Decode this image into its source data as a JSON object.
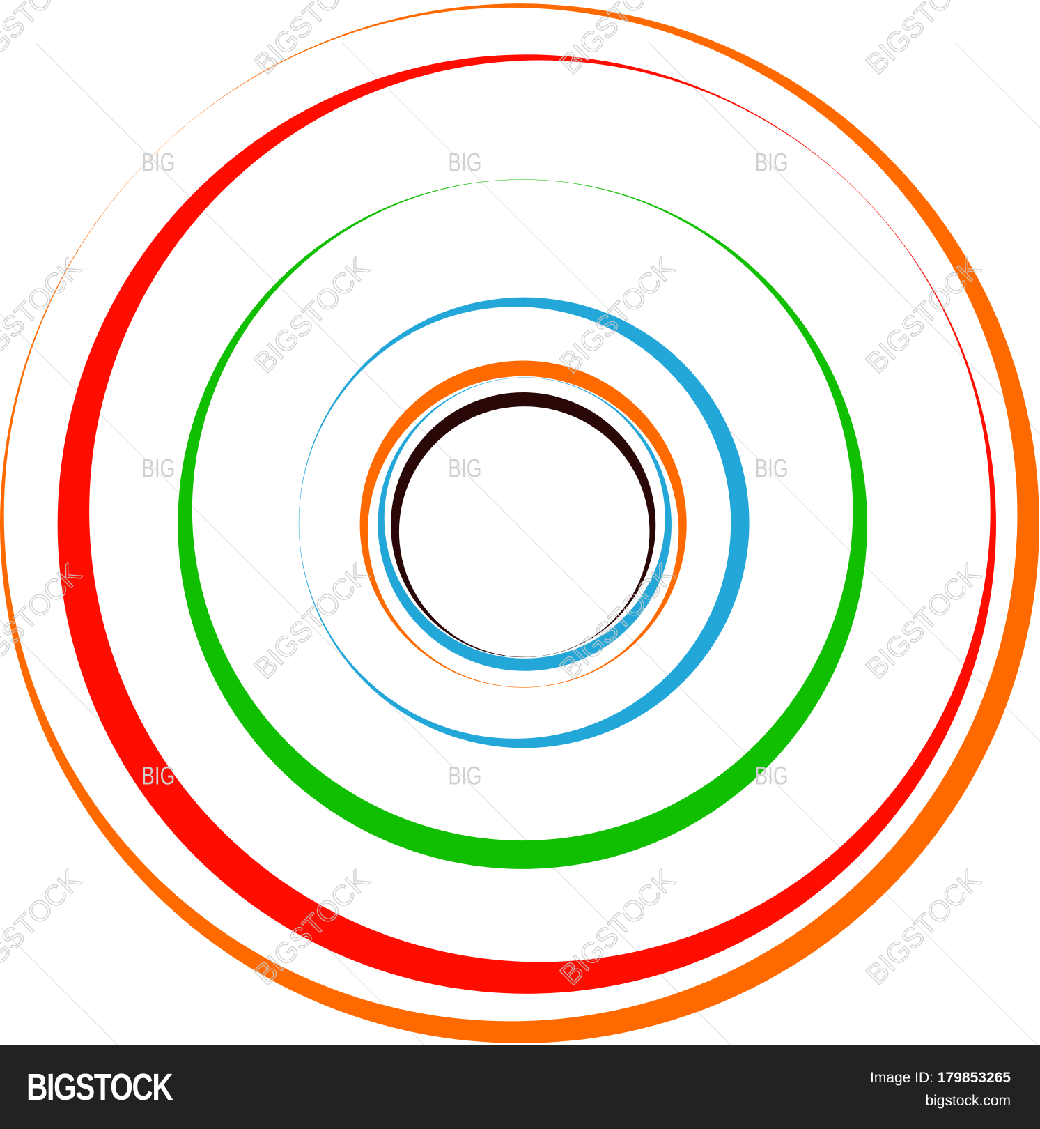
{
  "artwork": {
    "colors": {
      "outer_orange": "#ff6a00",
      "red": "#ff0d00",
      "green": "#10bf00",
      "blue": "#22a7d8",
      "inner_orange": "#ff6a00",
      "inner_blue": "#22a7d8",
      "black": "#2a0808"
    },
    "watermark": {
      "long": "BIGSTOCK",
      "short": "BIG",
      "color": "#c8c8c8"
    }
  },
  "footer": {
    "logo": "BIGSTOCK",
    "image_id_label": "Image ID:",
    "image_id": "179853265",
    "site": "bigstock.com",
    "background": "#222222"
  }
}
